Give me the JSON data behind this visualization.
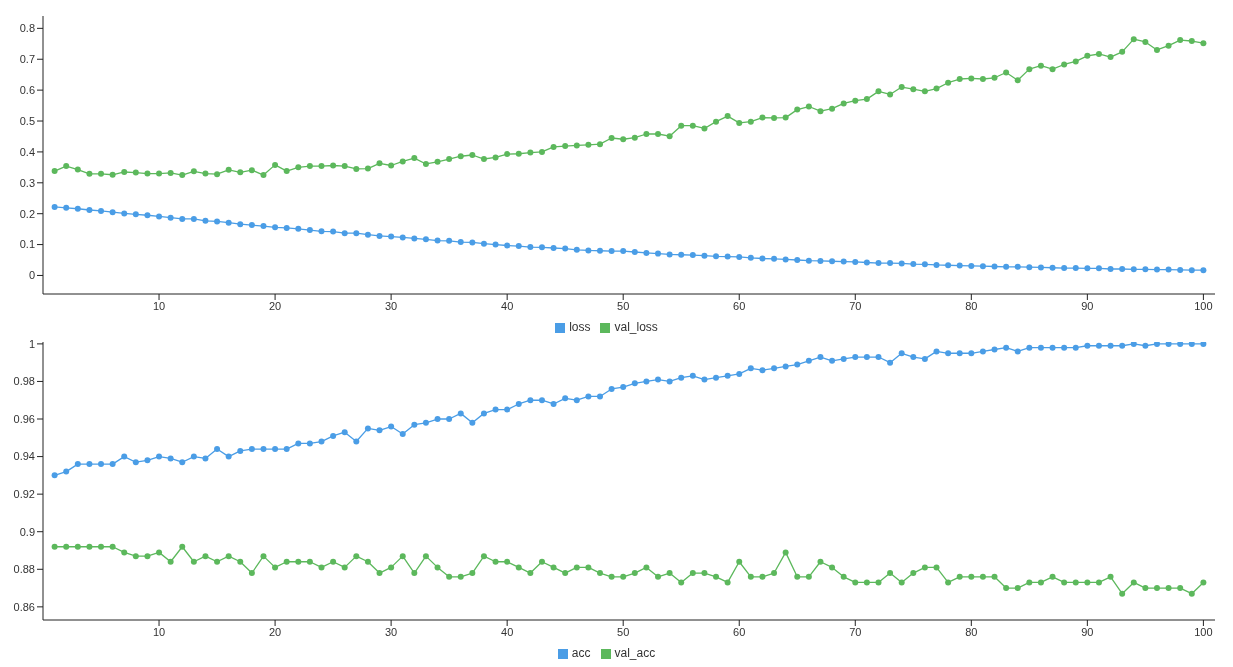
{
  "chart_data": [
    {
      "type": "line",
      "x": [
        1,
        2,
        3,
        4,
        5,
        6,
        7,
        8,
        9,
        10,
        11,
        12,
        13,
        14,
        15,
        16,
        17,
        18,
        19,
        20,
        21,
        22,
        23,
        24,
        25,
        26,
        27,
        28,
        29,
        30,
        31,
        32,
        33,
        34,
        35,
        36,
        37,
        38,
        39,
        40,
        41,
        42,
        43,
        44,
        45,
        46,
        47,
        48,
        49,
        50,
        51,
        52,
        53,
        54,
        55,
        56,
        57,
        58,
        59,
        60,
        61,
        62,
        63,
        64,
        65,
        66,
        67,
        68,
        69,
        70,
        71,
        72,
        73,
        74,
        75,
        76,
        77,
        78,
        79,
        80,
        81,
        82,
        83,
        84,
        85,
        86,
        87,
        88,
        89,
        90,
        91,
        92,
        93,
        94,
        95,
        96,
        97,
        98,
        99,
        100
      ],
      "xlim": [
        0,
        101
      ],
      "xticks": [
        10,
        20,
        30,
        40,
        50,
        60,
        70,
        80,
        90,
        100
      ],
      "ylim": [
        -0.06,
        0.84
      ],
      "yticks": [
        0,
        0.1,
        0.2,
        0.3,
        0.4,
        0.5,
        0.6,
        0.7,
        0.8
      ],
      "legend": "bottom",
      "marker": "circle",
      "series": [
        {
          "name": "loss",
          "color": "#4a9de6",
          "values": [
            0.222,
            0.219,
            0.216,
            0.212,
            0.209,
            0.205,
            0.201,
            0.198,
            0.195,
            0.191,
            0.187,
            0.183,
            0.183,
            0.177,
            0.175,
            0.171,
            0.166,
            0.163,
            0.16,
            0.156,
            0.154,
            0.151,
            0.147,
            0.143,
            0.142,
            0.137,
            0.137,
            0.132,
            0.128,
            0.126,
            0.123,
            0.12,
            0.117,
            0.113,
            0.112,
            0.108,
            0.107,
            0.103,
            0.1,
            0.097,
            0.095,
            0.092,
            0.091,
            0.089,
            0.087,
            0.083,
            0.081,
            0.08,
            0.079,
            0.079,
            0.076,
            0.073,
            0.071,
            0.068,
            0.067,
            0.066,
            0.064,
            0.062,
            0.061,
            0.06,
            0.057,
            0.055,
            0.054,
            0.052,
            0.05,
            0.048,
            0.047,
            0.046,
            0.045,
            0.044,
            0.042,
            0.04,
            0.04,
            0.039,
            0.037,
            0.036,
            0.034,
            0.033,
            0.032,
            0.031,
            0.03,
            0.029,
            0.028,
            0.028,
            0.027,
            0.026,
            0.025,
            0.024,
            0.024,
            0.023,
            0.023,
            0.021,
            0.021,
            0.02,
            0.02,
            0.019,
            0.019,
            0.018,
            0.017,
            0.017
          ]
        },
        {
          "name": "val_loss",
          "color": "#5cb85c",
          "values": [
            0.338,
            0.354,
            0.343,
            0.329,
            0.329,
            0.326,
            0.335,
            0.333,
            0.33,
            0.33,
            0.332,
            0.325,
            0.337,
            0.33,
            0.328,
            0.342,
            0.334,
            0.341,
            0.325,
            0.358,
            0.338,
            0.35,
            0.354,
            0.354,
            0.356,
            0.354,
            0.345,
            0.346,
            0.363,
            0.356,
            0.369,
            0.38,
            0.361,
            0.368,
            0.377,
            0.386,
            0.39,
            0.377,
            0.382,
            0.393,
            0.394,
            0.398,
            0.4,
            0.416,
            0.419,
            0.421,
            0.423,
            0.425,
            0.445,
            0.441,
            0.446,
            0.458,
            0.458,
            0.451,
            0.485,
            0.485,
            0.476,
            0.498,
            0.516,
            0.494,
            0.498,
            0.511,
            0.51,
            0.511,
            0.537,
            0.547,
            0.532,
            0.54,
            0.557,
            0.566,
            0.571,
            0.596,
            0.586,
            0.61,
            0.603,
            0.596,
            0.605,
            0.624,
            0.636,
            0.638,
            0.636,
            0.64,
            0.657,
            0.632,
            0.668,
            0.679,
            0.668,
            0.683,
            0.693,
            0.711,
            0.717,
            0.707,
            0.724,
            0.765,
            0.756,
            0.73,
            0.744,
            0.762,
            0.759,
            0.752
          ]
        }
      ]
    },
    {
      "type": "line",
      "x": [
        1,
        2,
        3,
        4,
        5,
        6,
        7,
        8,
        9,
        10,
        11,
        12,
        13,
        14,
        15,
        16,
        17,
        18,
        19,
        20,
        21,
        22,
        23,
        24,
        25,
        26,
        27,
        28,
        29,
        30,
        31,
        32,
        33,
        34,
        35,
        36,
        37,
        38,
        39,
        40,
        41,
        42,
        43,
        44,
        45,
        46,
        47,
        48,
        49,
        50,
        51,
        52,
        53,
        54,
        55,
        56,
        57,
        58,
        59,
        60,
        61,
        62,
        63,
        64,
        65,
        66,
        67,
        68,
        69,
        70,
        71,
        72,
        73,
        74,
        75,
        76,
        77,
        78,
        79,
        80,
        81,
        82,
        83,
        84,
        85,
        86,
        87,
        88,
        89,
        90,
        91,
        92,
        93,
        94,
        95,
        96,
        97,
        98,
        99,
        100
      ],
      "xlim": [
        0,
        101
      ],
      "xticks": [
        10,
        20,
        30,
        40,
        50,
        60,
        70,
        80,
        90,
        100
      ],
      "ylim": [
        0.853,
        1.001
      ],
      "yticks": [
        0.86,
        0.88,
        0.9,
        0.92,
        0.94,
        0.96,
        0.98,
        1
      ],
      "legend": "bottom",
      "marker": "circle",
      "series": [
        {
          "name": "acc",
          "color": "#4a9de6",
          "values": [
            0.93,
            0.932,
            0.936,
            0.936,
            0.936,
            0.936,
            0.94,
            0.937,
            0.938,
            0.94,
            0.939,
            0.937,
            0.94,
            0.939,
            0.944,
            0.94,
            0.943,
            0.944,
            0.944,
            0.944,
            0.944,
            0.947,
            0.947,
            0.948,
            0.951,
            0.953,
            0.948,
            0.955,
            0.954,
            0.956,
            0.952,
            0.957,
            0.958,
            0.96,
            0.96,
            0.963,
            0.958,
            0.963,
            0.965,
            0.965,
            0.968,
            0.97,
            0.97,
            0.968,
            0.971,
            0.97,
            0.972,
            0.972,
            0.976,
            0.977,
            0.979,
            0.98,
            0.981,
            0.98,
            0.982,
            0.983,
            0.981,
            0.982,
            0.983,
            0.984,
            0.987,
            0.986,
            0.987,
            0.988,
            0.989,
            0.991,
            0.993,
            0.991,
            0.992,
            0.993,
            0.993,
            0.993,
            0.99,
            0.995,
            0.993,
            0.992,
            0.996,
            0.995,
            0.995,
            0.995,
            0.996,
            0.997,
            0.998,
            0.996,
            0.998,
            0.998,
            0.998,
            0.998,
            0.998,
            0.999,
            0.999,
            0.999,
            0.999,
            1.0,
            0.999,
            1.0,
            1.0,
            1.0,
            1.0,
            1.0
          ]
        },
        {
          "name": "val_acc",
          "color": "#5cb85c",
          "values": [
            0.892,
            0.892,
            0.892,
            0.892,
            0.892,
            0.892,
            0.889,
            0.887,
            0.887,
            0.889,
            0.884,
            0.892,
            0.884,
            0.887,
            0.884,
            0.887,
            0.884,
            0.878,
            0.887,
            0.881,
            0.884,
            0.884,
            0.884,
            0.881,
            0.884,
            0.881,
            0.887,
            0.884,
            0.878,
            0.881,
            0.887,
            0.878,
            0.887,
            0.881,
            0.876,
            0.876,
            0.878,
            0.887,
            0.884,
            0.884,
            0.881,
            0.878,
            0.884,
            0.881,
            0.878,
            0.881,
            0.881,
            0.878,
            0.876,
            0.876,
            0.878,
            0.881,
            0.876,
            0.878,
            0.873,
            0.878,
            0.878,
            0.876,
            0.873,
            0.884,
            0.876,
            0.876,
            0.878,
            0.889,
            0.876,
            0.876,
            0.884,
            0.881,
            0.876,
            0.873,
            0.873,
            0.873,
            0.878,
            0.873,
            0.878,
            0.881,
            0.881,
            0.873,
            0.876,
            0.876,
            0.876,
            0.876,
            0.87,
            0.87,
            0.873,
            0.873,
            0.876,
            0.873,
            0.873,
            0.873,
            0.873,
            0.876,
            0.867,
            0.873,
            0.87,
            0.87,
            0.87,
            0.87,
            0.867,
            0.873
          ]
        }
      ]
    }
  ]
}
